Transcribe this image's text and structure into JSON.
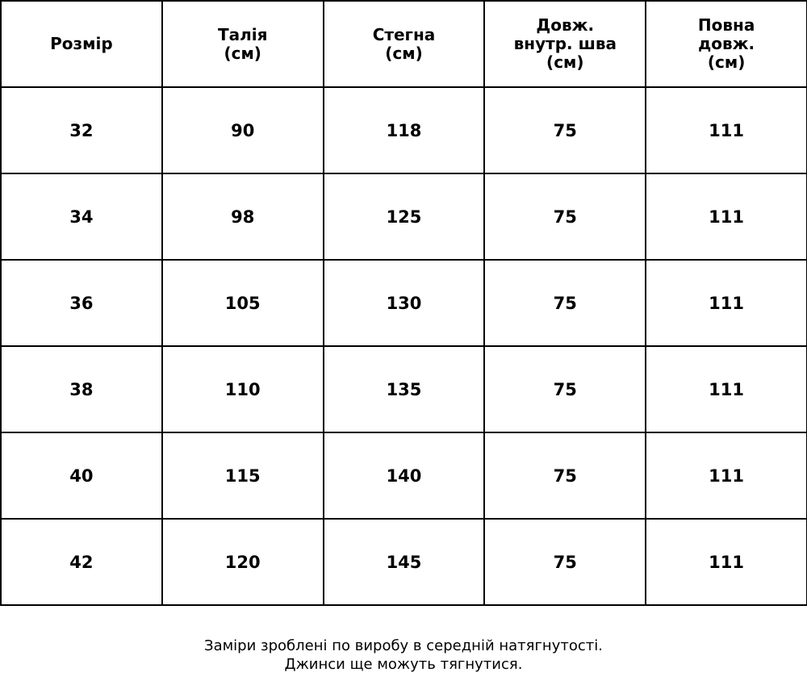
{
  "table": {
    "headers": [
      "Розмір",
      "Талія\n(см)",
      "Стегна\n(см)",
      "Довж.\nвнутр. шва\n(см)",
      "Повна\nдовж.\n(см)"
    ],
    "rows": [
      [
        "32",
        "90",
        "118",
        "75",
        "111"
      ],
      [
        "34",
        "98",
        "125",
        "75",
        "111"
      ],
      [
        "36",
        "105",
        "130",
        "75",
        "111"
      ],
      [
        "38",
        "110",
        "135",
        "75",
        "111"
      ],
      [
        "40",
        "115",
        "140",
        "75",
        "111"
      ],
      [
        "42",
        "120",
        "145",
        "75",
        "111"
      ]
    ]
  },
  "note": {
    "line1": "Заміри зроблені по виробу в середній натягнутості.",
    "line2": "Джинси ще можуть тягнутися."
  }
}
